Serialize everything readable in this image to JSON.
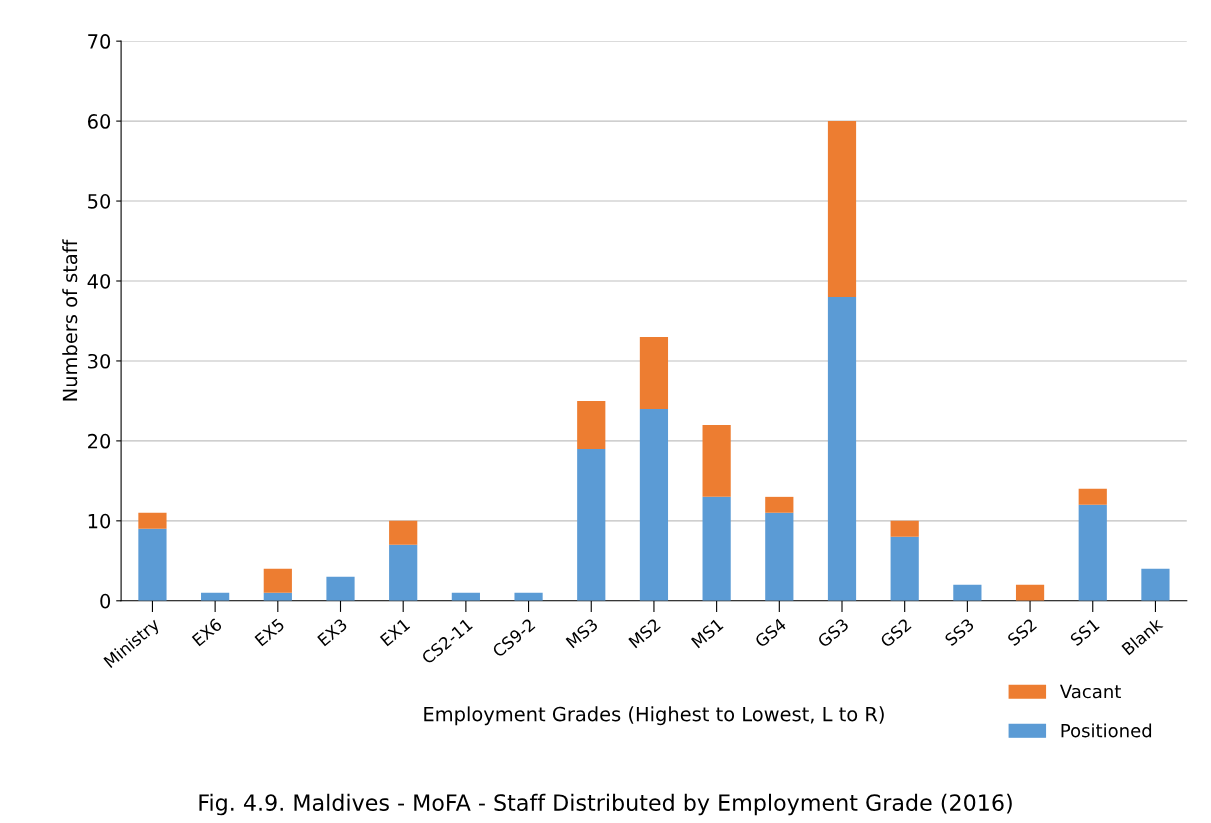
{
  "chart_data": {
    "type": "bar",
    "title": "Fig. 4.9. Maldives - MoFA - Staff Distributed by Employment Grade (2016)",
    "xlabel": "Employment Grades (Highest to Lowest, L to R)",
    "ylabel": "Numbers of staff",
    "categories": [
      "Ministry",
      "EX6",
      "EX5",
      "EX3",
      "EX1",
      "CS2-11",
      "CS9-2",
      "MS3",
      "MS2",
      "MS1",
      "GS4",
      "GS3",
      "GS2",
      "SS3",
      "SS2",
      "SS1",
      "Blank"
    ],
    "stacked": true,
    "series": [
      {
        "name": "Positioned",
        "color": "#5b9bd5",
        "values": [
          9,
          1,
          1,
          3,
          7,
          1,
          1,
          19,
          24,
          13,
          11,
          38,
          8,
          2,
          0,
          12,
          4
        ]
      },
      {
        "name": "Vacant",
        "color": "#ed7d31",
        "values": [
          2,
          0,
          3,
          0,
          3,
          0,
          0,
          6,
          9,
          9,
          2,
          22,
          2,
          0,
          2,
          2,
          0
        ]
      }
    ],
    "ylim": [
      0,
      70
    ],
    "yticks": [
      0,
      10,
      20,
      30,
      40,
      50,
      60,
      70
    ],
    "grid": "y",
    "legend": "bottom right"
  }
}
